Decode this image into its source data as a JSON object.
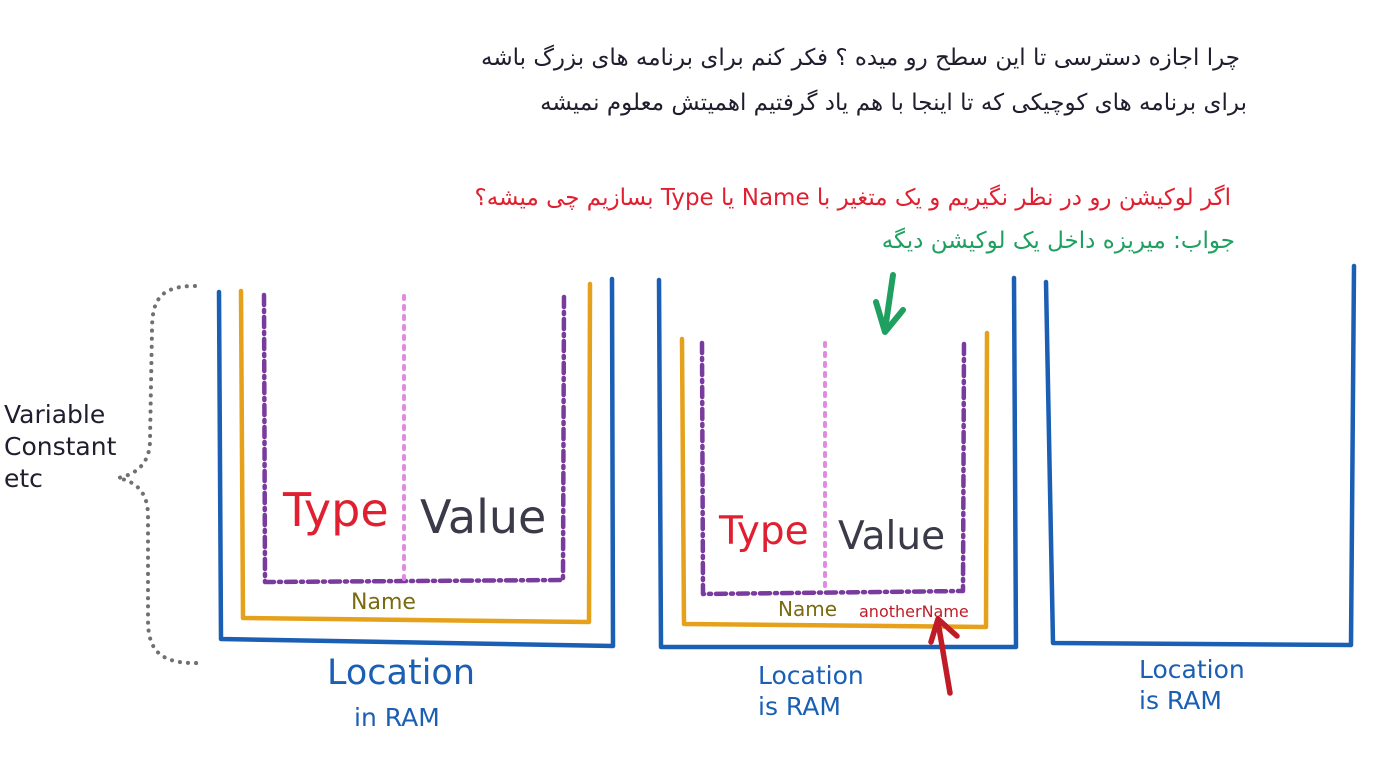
{
  "notes": {
    "line1": "چرا اجازه دسترسی تا این سطح رو میده ؟ فکر کنم برای برنامه های بزرگ باشه",
    "line2": "برای برنامه های کوچیکی که تا اینجا با هم یاد گرفتیم اهمیتش معلوم نمیشه",
    "question": "اگر لوکیشن رو در نظر نگیریم و یک متغیر با Name یا Type بسازیم چی میشه؟",
    "answer": "جواب: میریزه داخل یک لوکیشن دیگه"
  },
  "brace_labels": {
    "line1": "Variable",
    "line2": "Constant",
    "line3": "etc"
  },
  "box1": {
    "type": "Type",
    "value": "Value",
    "name": "Name",
    "location_line1": "Location",
    "location_line2": "in RAM"
  },
  "box2": {
    "type": "Type",
    "value": "Value",
    "name": "Name",
    "other_name": "anotherName",
    "location_line1": "Location",
    "location_line2": "is RAM"
  },
  "box3": {
    "location_line1": "Location",
    "location_line2": "is RAM"
  },
  "colors": {
    "ink": "#1e1e2e",
    "red": "#e02030",
    "green": "#1fa060",
    "blue": "#1a5fb4",
    "orange": "#e5a11b",
    "purple": "#7a3b9e",
    "pink": "#e08ae0",
    "gray": "#707070",
    "olive": "#7a6a10",
    "dark_red": "#c01c28",
    "value_gray": "#3a3a48"
  }
}
